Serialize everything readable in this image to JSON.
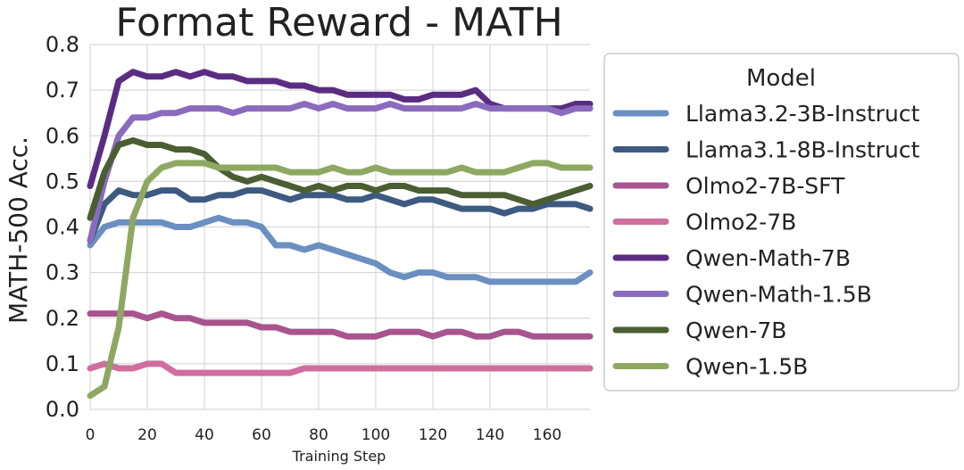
{
  "chart_data": {
    "type": "line",
    "title": "Format Reward - MATH",
    "xlabel": "Training Step",
    "ylabel": "MATH-500 Acc.",
    "xlim": [
      0,
      175
    ],
    "ylim": [
      0,
      0.8
    ],
    "xticks": [
      "0",
      "20",
      "40",
      "60",
      "80",
      "100",
      "120",
      "140",
      "160"
    ],
    "yticks": [
      "0.0",
      "0.1",
      "0.2",
      "0.3",
      "0.4",
      "0.5",
      "0.6",
      "0.7",
      "0.8"
    ],
    "grid": true,
    "legend": {
      "title": "Model",
      "position": "right"
    },
    "x": [
      0,
      5,
      10,
      15,
      20,
      25,
      30,
      35,
      40,
      45,
      50,
      55,
      60,
      65,
      70,
      75,
      80,
      85,
      90,
      95,
      100,
      105,
      110,
      115,
      120,
      125,
      130,
      135,
      140,
      145,
      150,
      155,
      160,
      165,
      170,
      175
    ],
    "series": [
      {
        "name": "Llama3.2-3B-Instruct",
        "color": "#6a8fc0",
        "values": [
          0.36,
          0.4,
          0.41,
          0.41,
          0.41,
          0.41,
          0.4,
          0.4,
          0.41,
          0.42,
          0.41,
          0.41,
          0.4,
          0.36,
          0.36,
          0.35,
          0.36,
          0.35,
          0.34,
          0.33,
          0.32,
          0.3,
          0.29,
          0.3,
          0.3,
          0.29,
          0.29,
          0.29,
          0.28,
          0.28,
          0.28,
          0.28,
          0.28,
          0.28,
          0.28,
          0.3
        ]
      },
      {
        "name": "Llama3.1-8B-Instruct",
        "color": "#3d5a80",
        "values": [
          0.37,
          0.45,
          0.48,
          0.47,
          0.47,
          0.48,
          0.48,
          0.46,
          0.46,
          0.47,
          0.47,
          0.48,
          0.48,
          0.47,
          0.46,
          0.47,
          0.47,
          0.47,
          0.46,
          0.46,
          0.47,
          0.46,
          0.45,
          0.46,
          0.46,
          0.45,
          0.44,
          0.44,
          0.44,
          0.43,
          0.44,
          0.44,
          0.45,
          0.45,
          0.45,
          0.44
        ]
      },
      {
        "name": "Olmo2-7B-SFT",
        "color": "#a8548e",
        "values": [
          0.21,
          0.21,
          0.21,
          0.21,
          0.2,
          0.21,
          0.2,
          0.2,
          0.19,
          0.19,
          0.19,
          0.19,
          0.18,
          0.18,
          0.17,
          0.17,
          0.17,
          0.17,
          0.16,
          0.16,
          0.16,
          0.17,
          0.17,
          0.17,
          0.16,
          0.17,
          0.17,
          0.16,
          0.16,
          0.17,
          0.17,
          0.16,
          0.16,
          0.16,
          0.16,
          0.16
        ]
      },
      {
        "name": "Olmo2-7B",
        "color": "#d06e9d",
        "values": [
          0.09,
          0.1,
          0.09,
          0.09,
          0.1,
          0.1,
          0.08,
          0.08,
          0.08,
          0.08,
          0.08,
          0.08,
          0.08,
          0.08,
          0.08,
          0.09,
          0.09,
          0.09,
          0.09,
          0.09,
          0.09,
          0.09,
          0.09,
          0.09,
          0.09,
          0.09,
          0.09,
          0.09,
          0.09,
          0.09,
          0.09,
          0.09,
          0.09,
          0.09,
          0.09,
          0.09
        ]
      },
      {
        "name": "Qwen-Math-7B",
        "color": "#5a2d82",
        "values": [
          0.49,
          0.6,
          0.72,
          0.74,
          0.73,
          0.73,
          0.74,
          0.73,
          0.74,
          0.73,
          0.73,
          0.72,
          0.72,
          0.72,
          0.71,
          0.71,
          0.7,
          0.7,
          0.69,
          0.69,
          0.69,
          0.69,
          0.68,
          0.68,
          0.69,
          0.69,
          0.69,
          0.7,
          0.67,
          0.66,
          0.66,
          0.66,
          0.66,
          0.66,
          0.67,
          0.67
        ]
      },
      {
        "name": "Qwen-Math-1.5B",
        "color": "#8a6bbe",
        "values": [
          0.37,
          0.5,
          0.6,
          0.64,
          0.64,
          0.65,
          0.65,
          0.66,
          0.66,
          0.66,
          0.65,
          0.66,
          0.66,
          0.66,
          0.66,
          0.67,
          0.66,
          0.67,
          0.66,
          0.66,
          0.66,
          0.67,
          0.66,
          0.66,
          0.66,
          0.66,
          0.66,
          0.67,
          0.66,
          0.66,
          0.66,
          0.66,
          0.66,
          0.65,
          0.66,
          0.66
        ]
      },
      {
        "name": "Qwen-7B",
        "color": "#4a5e32",
        "values": [
          0.42,
          0.52,
          0.58,
          0.59,
          0.58,
          0.58,
          0.57,
          0.57,
          0.56,
          0.53,
          0.51,
          0.5,
          0.51,
          0.5,
          0.49,
          0.48,
          0.49,
          0.48,
          0.49,
          0.49,
          0.48,
          0.49,
          0.49,
          0.48,
          0.48,
          0.48,
          0.47,
          0.47,
          0.47,
          0.47,
          0.46,
          0.45,
          0.46,
          0.47,
          0.48,
          0.49
        ]
      },
      {
        "name": "Qwen-1.5B",
        "color": "#8ea862",
        "values": [
          0.03,
          0.05,
          0.18,
          0.42,
          0.5,
          0.53,
          0.54,
          0.54,
          0.54,
          0.53,
          0.53,
          0.53,
          0.53,
          0.53,
          0.52,
          0.52,
          0.52,
          0.53,
          0.52,
          0.52,
          0.53,
          0.52,
          0.52,
          0.52,
          0.52,
          0.52,
          0.53,
          0.52,
          0.52,
          0.52,
          0.53,
          0.54,
          0.54,
          0.53,
          0.53,
          0.53
        ]
      }
    ]
  }
}
